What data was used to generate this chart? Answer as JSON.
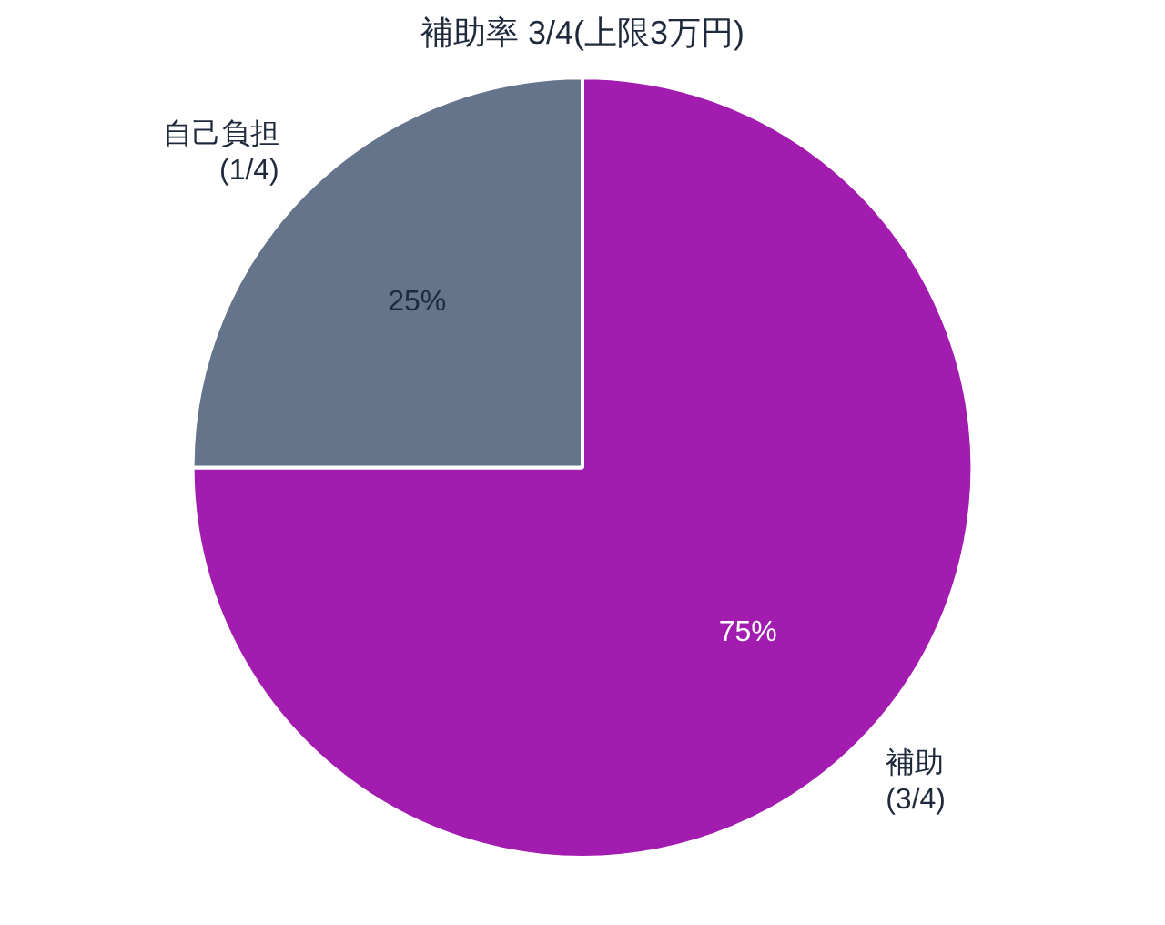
{
  "chart_data": {
    "type": "pie",
    "title": "補助率 3/4(上限3万円)",
    "categories": [
      "補助\n(3/4)",
      "自己負担\n(1/4)"
    ],
    "values": [
      75,
      25
    ],
    "colors": [
      "#a21caf",
      "#64748b"
    ],
    "value_labels": [
      "75%",
      "25%"
    ],
    "legend": false
  }
}
